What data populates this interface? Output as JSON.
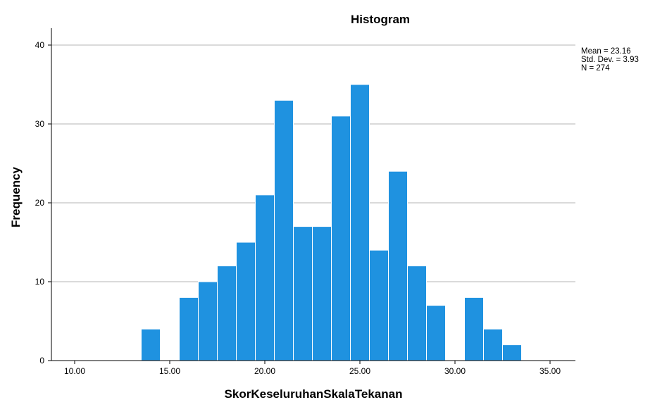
{
  "chart_data": {
    "type": "bar",
    "title": "Histogram",
    "xlabel": "SkorKeseluruhanSkalaTekanan",
    "ylabel": "Frequency",
    "xlim": [
      8.5,
      36.5
    ],
    "ylim": [
      0,
      42
    ],
    "x_ticks": [
      10,
      15,
      20,
      25,
      30,
      35
    ],
    "x_tick_labels": [
      "10.00",
      "15.00",
      "20.00",
      "25.00",
      "30.00",
      "35.00"
    ],
    "y_ticks": [
      0,
      10,
      20,
      30,
      40
    ],
    "y_tick_labels": [
      "0",
      "10",
      "20",
      "30",
      "40"
    ],
    "grid": true,
    "bin_width": 1,
    "bins": [
      {
        "x": 14,
        "count": 4
      },
      {
        "x": 16,
        "count": 8
      },
      {
        "x": 17,
        "count": 10
      },
      {
        "x": 18,
        "count": 12
      },
      {
        "x": 19,
        "count": 15
      },
      {
        "x": 20,
        "count": 21
      },
      {
        "x": 21,
        "count": 33
      },
      {
        "x": 22,
        "count": 17
      },
      {
        "x": 23,
        "count": 17
      },
      {
        "x": 24,
        "count": 31
      },
      {
        "x": 25,
        "count": 35
      },
      {
        "x": 26,
        "count": 14
      },
      {
        "x": 27,
        "count": 24
      },
      {
        "x": 28,
        "count": 12
      },
      {
        "x": 29,
        "count": 7
      },
      {
        "x": 31,
        "count": 8
      },
      {
        "x": 32,
        "count": 4
      },
      {
        "x": 33,
        "count": 2
      }
    ],
    "bar_color": "#1f92e0",
    "bar_edge_color": "#ffffff",
    "stats": [
      "Mean = 23.16",
      "Std. Dev. = 3.93",
      "N = 274"
    ],
    "legend_position": "top-right"
  }
}
